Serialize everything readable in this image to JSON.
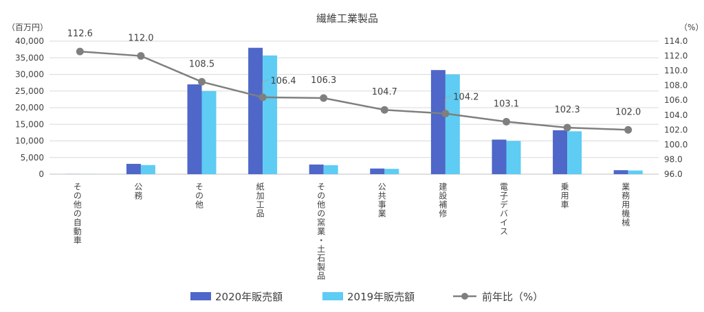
{
  "chart_data": {
    "type": "bar",
    "title": "繊維工業製品",
    "y_left_unit": "（百万円）",
    "y_right_unit": "（%）",
    "categories": [
      "その他の自動車",
      "公務",
      "その他",
      "紙加工品",
      "その他の窯業・土石製品",
      "公共事業",
      "建設補修",
      "電子デバイス",
      "乗用車",
      "業務用機械"
    ],
    "series": [
      {
        "name": "2020年販売額",
        "type": "bar",
        "axis": "left",
        "color": "#4E67C8",
        "values": [
          30,
          3100,
          27000,
          38000,
          2900,
          1700,
          31300,
          10400,
          13200,
          1200
        ]
      },
      {
        "name": "2019年販売額",
        "type": "bar",
        "axis": "left",
        "color": "#5ECCF3",
        "values": [
          25,
          2750,
          25000,
          35700,
          2700,
          1600,
          30000,
          10000,
          12900,
          1100
        ]
      },
      {
        "name": "前年比（%）",
        "type": "line",
        "axis": "right",
        "color": "#7F7F7F",
        "values": [
          112.6,
          112.0,
          108.5,
          106.4,
          106.3,
          104.7,
          104.2,
          103.1,
          102.3,
          102.0
        ]
      }
    ],
    "data_labels": [
      "112.6",
      "112.0",
      "108.5",
      "106.4",
      "106.3",
      "104.7",
      "104.2",
      "103.1",
      "102.3",
      "102.0"
    ],
    "y_left": {
      "min": 0,
      "max": 40000,
      "step": 5000,
      "ticks": [
        "0",
        "5,000",
        "10,000",
        "15,000",
        "20,000",
        "25,000",
        "30,000",
        "35,000",
        "40,000"
      ]
    },
    "y_right": {
      "min": 96.0,
      "max": 114.0,
      "step": 2.0,
      "ticks": [
        "96.0",
        "98.0",
        "100.0",
        "102.0",
        "104.0",
        "106.0",
        "108.0",
        "110.0",
        "112.0",
        "114.0"
      ]
    },
    "grid": true,
    "legend_position": "bottom"
  }
}
